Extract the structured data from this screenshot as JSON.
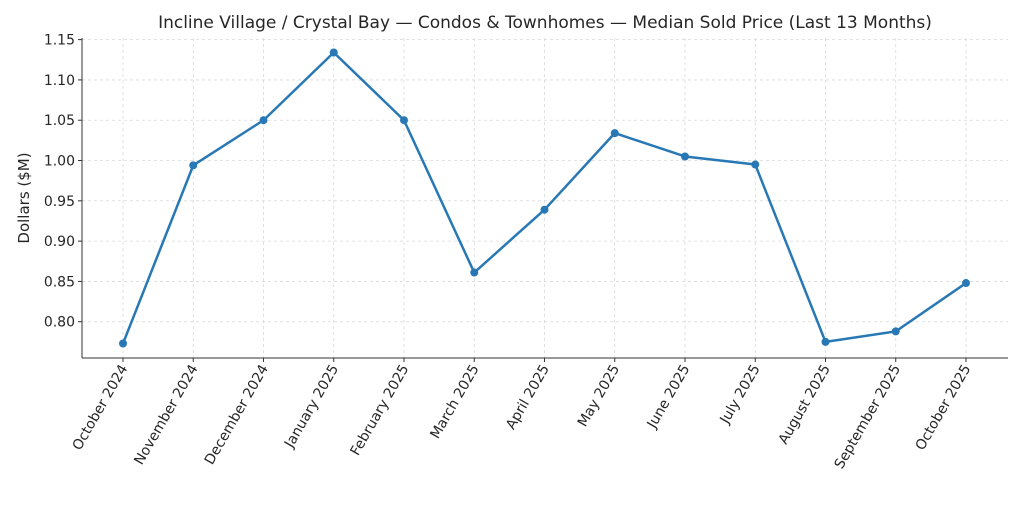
{
  "chart_data": {
    "type": "line",
    "title": "Incline Village / Crystal Bay — Condos & Townhomes — Median Sold Price (Last 13 Months)",
    "xlabel": "",
    "ylabel": "Dollars ($M)",
    "categories": [
      "October 2024",
      "November 2024",
      "December 2024",
      "January 2025",
      "February 2025",
      "March 2025",
      "April 2025",
      "May 2025",
      "June 2025",
      "July 2025",
      "August 2025",
      "September 2025",
      "October 2025"
    ],
    "values": [
      0.773,
      0.994,
      1.05,
      1.134,
      1.05,
      0.861,
      0.939,
      1.034,
      1.005,
      0.995,
      0.775,
      0.788,
      0.848
    ],
    "ylim": [
      0.755,
      1.152
    ],
    "yticks": [
      "0.80",
      "0.85",
      "0.90",
      "0.95",
      "1.00",
      "1.05",
      "1.10",
      "1.15"
    ],
    "grid": true,
    "line_color": "#2878b5",
    "markers": true
  }
}
